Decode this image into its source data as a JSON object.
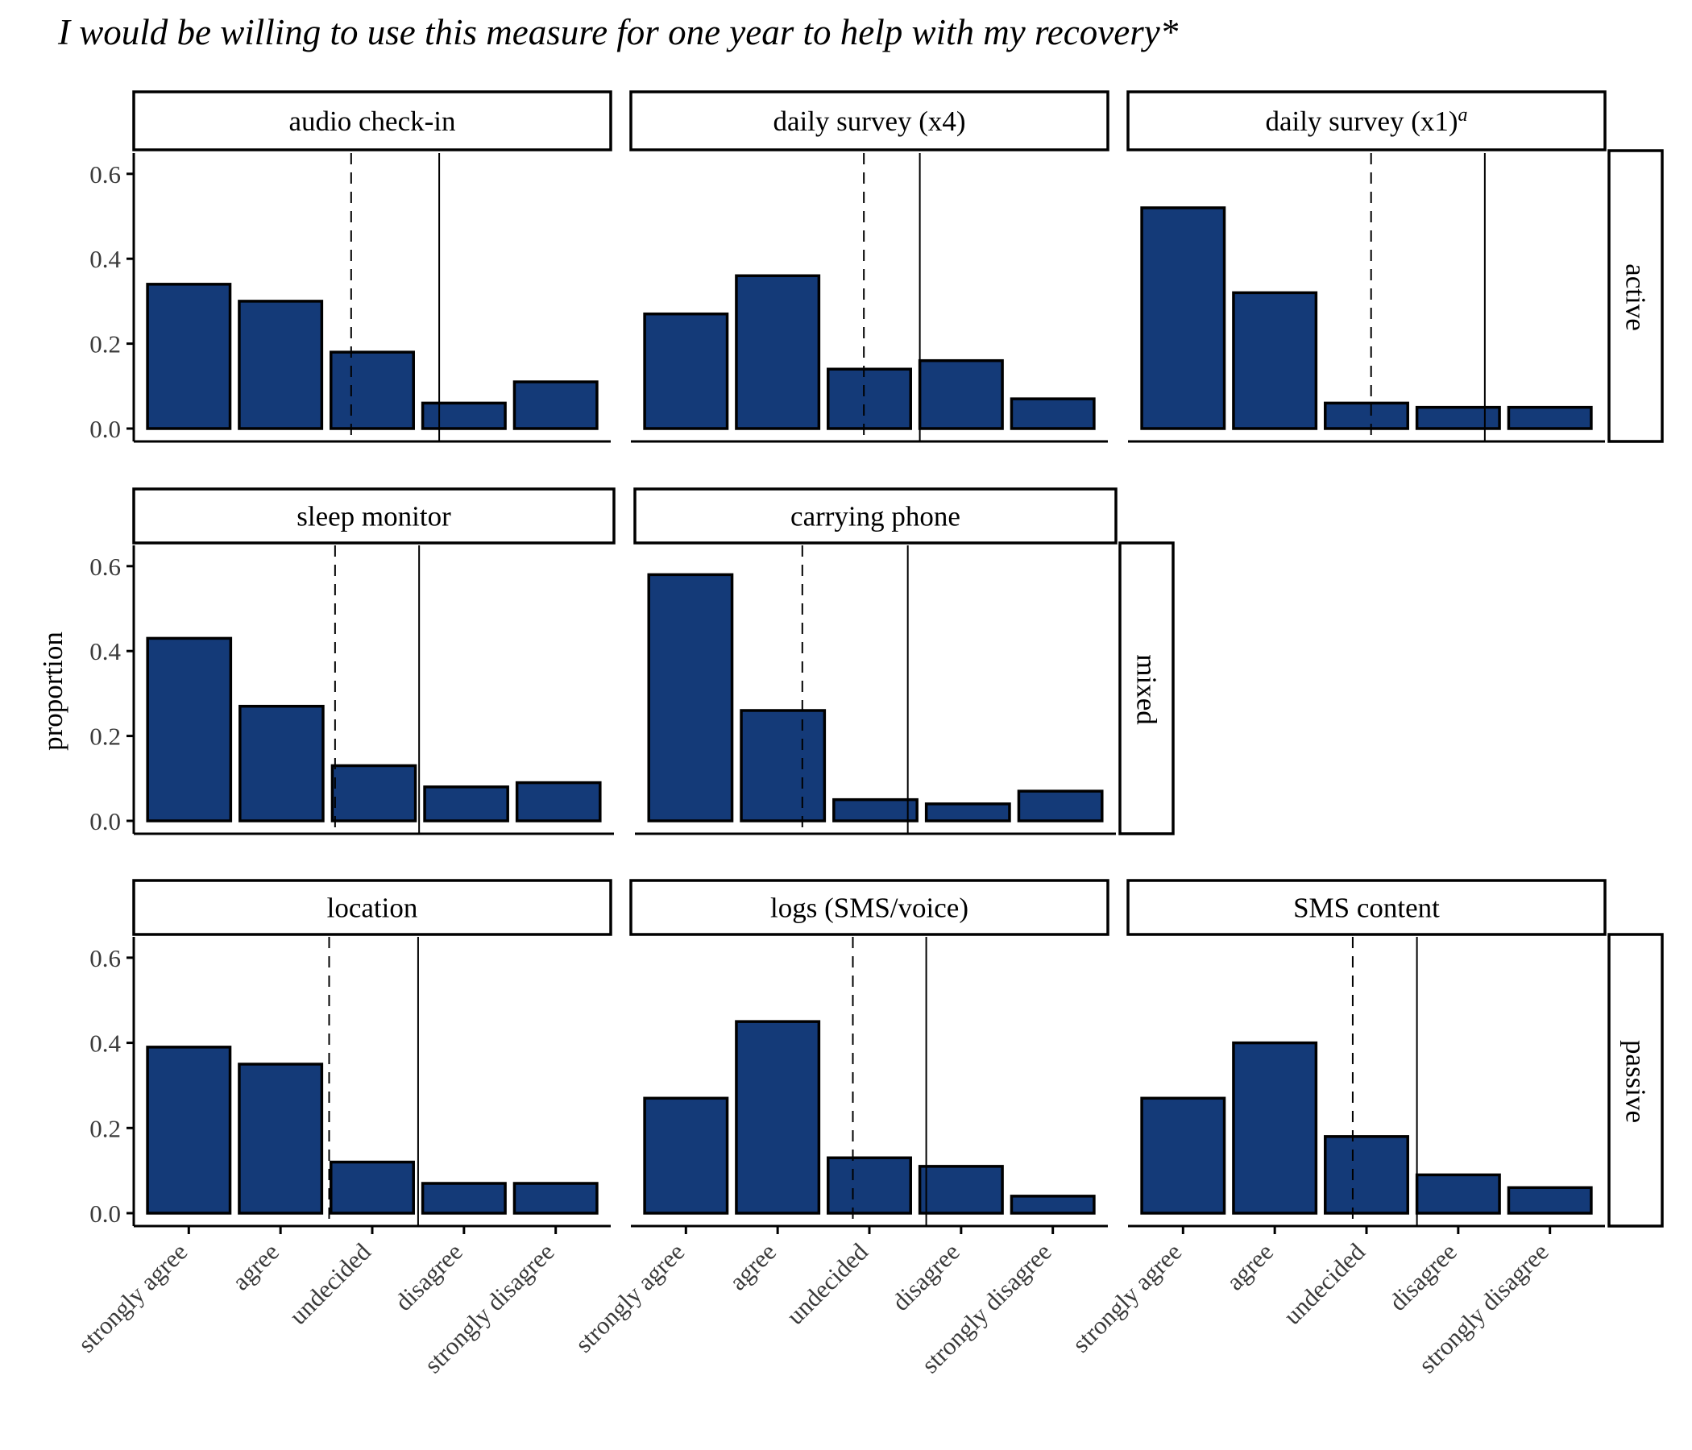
{
  "title": "I would be willing to use this measure for one year to help with my recovery*",
  "chart_data": {
    "type": "bar",
    "title": "I would be willing to use this measure for one year to help with my recovery*",
    "ylabel": "proportion",
    "xlabel": "",
    "ylim": [
      0,
      0.63
    ],
    "yticks": [
      "0.0",
      "0.2",
      "0.4",
      "0.6"
    ],
    "categories": [
      "strongly agree",
      "agree",
      "undecided",
      "disagree",
      "strongly disagree"
    ],
    "fill_color": "#143a78",
    "edge_color": "#000000",
    "rows": [
      "active",
      "mixed",
      "passive"
    ],
    "panels": [
      {
        "name": "audio check-in",
        "superscript": "",
        "row": "active",
        "values": [
          0.34,
          0.3,
          0.18,
          0.06,
          0.11
        ],
        "mean": 1.77,
        "median": 2.73
      },
      {
        "name": "daily survey (x4)",
        "superscript": "",
        "row": "active",
        "values": [
          0.27,
          0.36,
          0.14,
          0.16,
          0.07
        ],
        "mean": 1.94,
        "median": 2.55
      },
      {
        "name": "daily survey (x1)",
        "superscript": "a",
        "row": "active",
        "values": [
          0.52,
          0.32,
          0.06,
          0.05,
          0.05
        ],
        "mean": 2.05,
        "median": 3.29
      },
      {
        "name": "sleep monitor",
        "superscript": "",
        "row": "mixed",
        "values": [
          0.43,
          0.27,
          0.13,
          0.08,
          0.09
        ],
        "mean": 1.58,
        "median": 2.49
      },
      {
        "name": "carrying phone",
        "superscript": "",
        "row": "mixed",
        "values": [
          0.58,
          0.26,
          0.05,
          0.04,
          0.07
        ],
        "mean": 1.21,
        "median": 2.35
      },
      {
        "name": "location",
        "superscript": "",
        "row": "passive",
        "values": [
          0.39,
          0.35,
          0.12,
          0.07,
          0.07
        ],
        "mean": 1.53,
        "median": 2.5
      },
      {
        "name": "logs (SMS/voice)",
        "superscript": "",
        "row": "passive",
        "values": [
          0.27,
          0.45,
          0.13,
          0.11,
          0.04
        ],
        "mean": 1.82,
        "median": 2.62
      },
      {
        "name": "SMS content",
        "superscript": "",
        "row": "passive",
        "values": [
          0.27,
          0.4,
          0.18,
          0.09,
          0.06
        ],
        "mean": 1.85,
        "median": 2.55
      }
    ],
    "legend": "none",
    "grid": false
  }
}
